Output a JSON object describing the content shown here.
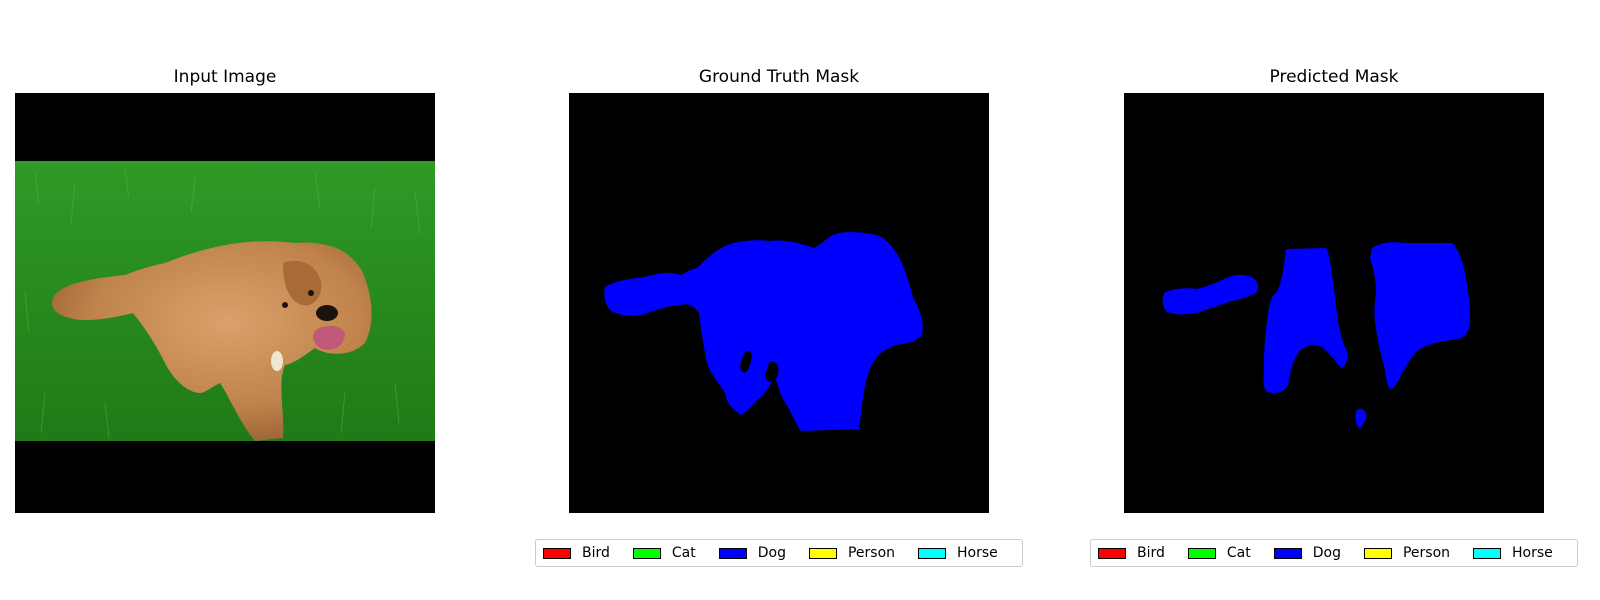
{
  "panels": [
    {
      "title": "Input Image"
    },
    {
      "title": "Ground Truth Mask"
    },
    {
      "title": "Predicted Mask"
    }
  ],
  "legend": {
    "items": [
      {
        "label": "Bird",
        "color": "#ff0000"
      },
      {
        "label": "Cat",
        "color": "#00ff00"
      },
      {
        "label": "Dog",
        "color": "#0000ff"
      },
      {
        "label": "Person",
        "color": "#ffff00"
      },
      {
        "label": "Horse",
        "color": "#00ffff"
      }
    ]
  },
  "colors": {
    "background": "#000000",
    "grass": "#2e8b1e",
    "dog_fur": "#c98c55",
    "mask_dog": "#0000ff"
  }
}
